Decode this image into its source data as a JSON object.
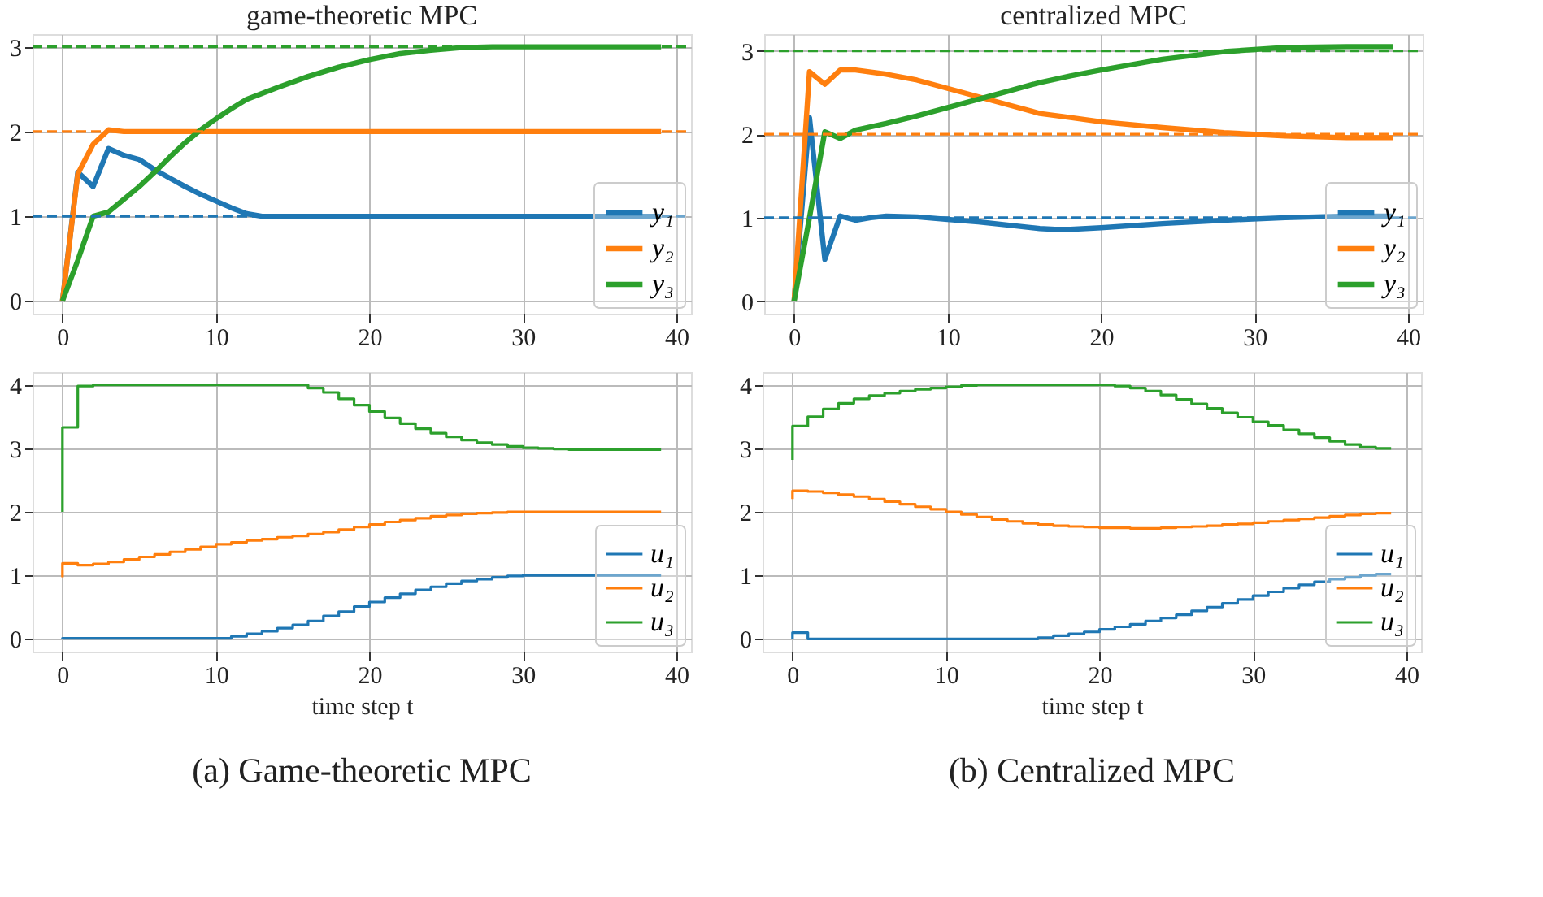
{
  "chart_data": [
    {
      "type": "line",
      "title": "game-theoretic MPC",
      "xlim": [
        -1.95,
        40.95
      ],
      "xticks": [
        0,
        10,
        20,
        30,
        40
      ],
      "ylim": [
        -0.15,
        3.15
      ],
      "yticks": [
        0,
        1,
        2,
        3
      ],
      "grid": true,
      "legend": "bottom right",
      "line_style": "solid",
      "ref_lines": [
        {
          "axis": "y",
          "value": 1,
          "color": "#1f77b4",
          "line_style": "dashed"
        },
        {
          "axis": "y",
          "value": 2,
          "color": "#ff7f0e",
          "line_style": "dashed"
        },
        {
          "axis": "y",
          "value": 3,
          "color": "#2ca02c",
          "line_style": "dashed"
        }
      ],
      "series": [
        {
          "name": "y₁",
          "color": "#1f77b4",
          "x": [
            0,
            1,
            2,
            3,
            4,
            5,
            6,
            7,
            8,
            9,
            10,
            11,
            12,
            13,
            20,
            30,
            39
          ],
          "values": [
            0,
            1.52,
            1.35,
            1.8,
            1.72,
            1.67,
            1.55,
            1.45,
            1.35,
            1.26,
            1.18,
            1.1,
            1.03,
            1.0,
            1.0,
            1.0,
            1.0
          ]
        },
        {
          "name": "y₂",
          "color": "#ff7f0e",
          "x": [
            0,
            1,
            2,
            3,
            4,
            10,
            20,
            30,
            39
          ],
          "values": [
            0,
            1.5,
            1.85,
            2.02,
            2.0,
            2.0,
            2.0,
            2.0,
            2.0
          ]
        },
        {
          "name": "y₃",
          "color": "#2ca02c",
          "x": [
            0,
            1,
            2,
            3,
            4,
            5,
            6,
            7,
            8,
            9,
            10,
            11,
            12,
            14,
            16,
            18,
            20,
            22,
            24,
            26,
            28,
            39
          ],
          "values": [
            0,
            0.48,
            1.0,
            1.05,
            1.2,
            1.35,
            1.52,
            1.7,
            1.87,
            2.02,
            2.15,
            2.27,
            2.38,
            2.52,
            2.65,
            2.76,
            2.85,
            2.92,
            2.96,
            2.99,
            3.0,
            3.0
          ]
        }
      ]
    },
    {
      "type": "line",
      "title": "centralized MPC",
      "xlim": [
        -1.95,
        40.95
      ],
      "xticks": [
        0,
        10,
        20,
        30,
        40
      ],
      "ylim": [
        -0.15,
        3.2
      ],
      "yticks": [
        0,
        1,
        2,
        3
      ],
      "grid": true,
      "legend": "bottom right",
      "line_style": "solid",
      "ref_lines": [
        {
          "axis": "y",
          "value": 1,
          "color": "#1f77b4",
          "line_style": "dashed"
        },
        {
          "axis": "y",
          "value": 2,
          "color": "#ff7f0e",
          "line_style": "dashed"
        },
        {
          "axis": "y",
          "value": 3,
          "color": "#2ca02c",
          "line_style": "dashed"
        }
      ],
      "series": [
        {
          "name": "y₁",
          "color": "#1f77b4",
          "x": [
            0,
            1,
            2,
            3,
            4,
            5,
            6,
            8,
            10,
            12,
            14,
            16,
            17,
            18,
            20,
            24,
            28,
            32,
            36,
            39
          ],
          "values": [
            0,
            2.2,
            0.5,
            1.02,
            0.97,
            1.0,
            1.02,
            1.01,
            0.98,
            0.95,
            0.91,
            0.87,
            0.86,
            0.86,
            0.88,
            0.93,
            0.97,
            1.0,
            1.02,
            1.02
          ]
        },
        {
          "name": "y₂",
          "color": "#ff7f0e",
          "x": [
            0,
            1,
            2,
            3,
            4,
            6,
            8,
            10,
            12,
            14,
            16,
            18,
            20,
            24,
            28,
            32,
            36,
            39
          ],
          "values": [
            0,
            2.75,
            2.6,
            2.77,
            2.77,
            2.72,
            2.65,
            2.55,
            2.45,
            2.35,
            2.25,
            2.2,
            2.15,
            2.08,
            2.02,
            1.98,
            1.96,
            1.96
          ]
        },
        {
          "name": "y₃",
          "color": "#2ca02c",
          "x": [
            0,
            1,
            2,
            3,
            4,
            6,
            8,
            10,
            12,
            14,
            16,
            18,
            20,
            24,
            28,
            32,
            36,
            39
          ],
          "values": [
            0,
            1.0,
            2.03,
            1.95,
            2.05,
            2.13,
            2.22,
            2.32,
            2.42,
            2.52,
            2.62,
            2.7,
            2.77,
            2.9,
            2.99,
            3.04,
            3.05,
            3.05
          ]
        }
      ]
    },
    {
      "type": "step",
      "xlabel": "time step t",
      "annotations": [
        "(a) Game-theoretic MPC"
      ],
      "xlim": [
        -1.95,
        40.95
      ],
      "xticks": [
        0,
        10,
        20,
        30,
        40
      ],
      "ylim": [
        -0.2,
        4.2
      ],
      "yticks": [
        0,
        1,
        2,
        3,
        4
      ],
      "grid": true,
      "legend": "bottom right",
      "line_style": "solid",
      "series": [
        {
          "name": "u₁",
          "color": "#1f77b4",
          "x": [
            0,
            11,
            12,
            13,
            14,
            15,
            16,
            17,
            18,
            19,
            20,
            21,
            22,
            23,
            24,
            25,
            26,
            27,
            28,
            29,
            30,
            31,
            39
          ],
          "values": [
            0,
            0.01,
            0.04,
            0.08,
            0.12,
            0.17,
            0.22,
            0.28,
            0.36,
            0.43,
            0.51,
            0.58,
            0.65,
            0.71,
            0.77,
            0.82,
            0.87,
            0.91,
            0.94,
            0.97,
            0.99,
            1.0,
            1.0
          ]
        },
        {
          "name": "u₂",
          "color": "#ff7f0e",
          "x": [
            0,
            1,
            2,
            3,
            4,
            5,
            6,
            7,
            8,
            9,
            10,
            11,
            12,
            13,
            14,
            15,
            16,
            17,
            18,
            19,
            20,
            21,
            22,
            23,
            24,
            25,
            26,
            27,
            28,
            29,
            30,
            39
          ],
          "values": [
            0.97,
            1.19,
            1.16,
            1.18,
            1.21,
            1.25,
            1.29,
            1.33,
            1.37,
            1.41,
            1.45,
            1.49,
            1.52,
            1.55,
            1.57,
            1.6,
            1.62,
            1.65,
            1.68,
            1.72,
            1.76,
            1.8,
            1.84,
            1.87,
            1.9,
            1.93,
            1.95,
            1.97,
            1.98,
            1.99,
            2.0,
            2.0
          ]
        },
        {
          "name": "u₃",
          "color": "#2ca02c",
          "x": [
            0,
            1,
            2,
            3,
            16,
            17,
            18,
            19,
            20,
            21,
            22,
            23,
            24,
            25,
            26,
            27,
            28,
            29,
            30,
            31,
            32,
            33,
            34,
            39
          ],
          "values": [
            2.0,
            3.33,
            3.98,
            4.0,
            4.0,
            3.95,
            3.88,
            3.78,
            3.68,
            3.58,
            3.48,
            3.39,
            3.31,
            3.24,
            3.18,
            3.13,
            3.09,
            3.06,
            3.03,
            3.01,
            3.0,
            2.99,
            2.98,
            2.98
          ]
        }
      ]
    },
    {
      "type": "step",
      "xlabel": "time step t",
      "annotations": [
        "(b) Centralized MPC"
      ],
      "xlim": [
        -1.95,
        40.95
      ],
      "xticks": [
        0,
        10,
        20,
        30,
        40
      ],
      "ylim": [
        -0.2,
        4.2
      ],
      "yticks": [
        0,
        1,
        2,
        3,
        4
      ],
      "grid": true,
      "legend": "bottom right",
      "line_style": "solid",
      "series": [
        {
          "name": "u₁",
          "color": "#1f77b4",
          "x": [
            0,
            1,
            2,
            16,
            17,
            18,
            19,
            20,
            21,
            22,
            23,
            24,
            25,
            26,
            27,
            28,
            29,
            30,
            31,
            32,
            33,
            34,
            35,
            36,
            37,
            38,
            39
          ],
          "values": [
            0,
            0.1,
            0,
            0,
            0.02,
            0.05,
            0.08,
            0.11,
            0.15,
            0.19,
            0.23,
            0.28,
            0.33,
            0.38,
            0.44,
            0.5,
            0.56,
            0.62,
            0.68,
            0.74,
            0.8,
            0.85,
            0.9,
            0.94,
            0.97,
            1.0,
            1.02
          ]
        },
        {
          "name": "u₂",
          "color": "#ff7f0e",
          "x": [
            0,
            1,
            2,
            3,
            4,
            5,
            6,
            7,
            8,
            9,
            10,
            11,
            12,
            13,
            14,
            15,
            16,
            17,
            18,
            19,
            20,
            21,
            22,
            23,
            24,
            25,
            26,
            27,
            28,
            29,
            30,
            31,
            32,
            33,
            34,
            35,
            36,
            37,
            38,
            39
          ],
          "values": [
            2.2,
            2.33,
            2.32,
            2.3,
            2.27,
            2.24,
            2.2,
            2.16,
            2.12,
            2.08,
            2.04,
            2.0,
            1.96,
            1.92,
            1.88,
            1.85,
            1.82,
            1.8,
            1.78,
            1.77,
            1.76,
            1.75,
            1.75,
            1.74,
            1.74,
            1.75,
            1.76,
            1.77,
            1.78,
            1.8,
            1.81,
            1.83,
            1.85,
            1.87,
            1.89,
            1.91,
            1.93,
            1.95,
            1.97,
            1.98
          ]
        },
        {
          "name": "u₃",
          "color": "#2ca02c",
          "x": [
            0,
            1,
            2,
            3,
            4,
            5,
            6,
            7,
            8,
            9,
            10,
            11,
            12,
            13,
            21,
            22,
            23,
            24,
            25,
            26,
            27,
            28,
            29,
            30,
            31,
            32,
            33,
            34,
            35,
            36,
            37,
            38,
            39
          ],
          "values": [
            2.82,
            3.35,
            3.5,
            3.62,
            3.71,
            3.78,
            3.83,
            3.87,
            3.9,
            3.93,
            3.95,
            3.97,
            3.99,
            4.0,
            4.0,
            3.98,
            3.95,
            3.9,
            3.84,
            3.77,
            3.7,
            3.63,
            3.56,
            3.49,
            3.42,
            3.36,
            3.29,
            3.23,
            3.17,
            3.11,
            3.06,
            3.02,
            3.0
          ]
        }
      ]
    }
  ]
}
